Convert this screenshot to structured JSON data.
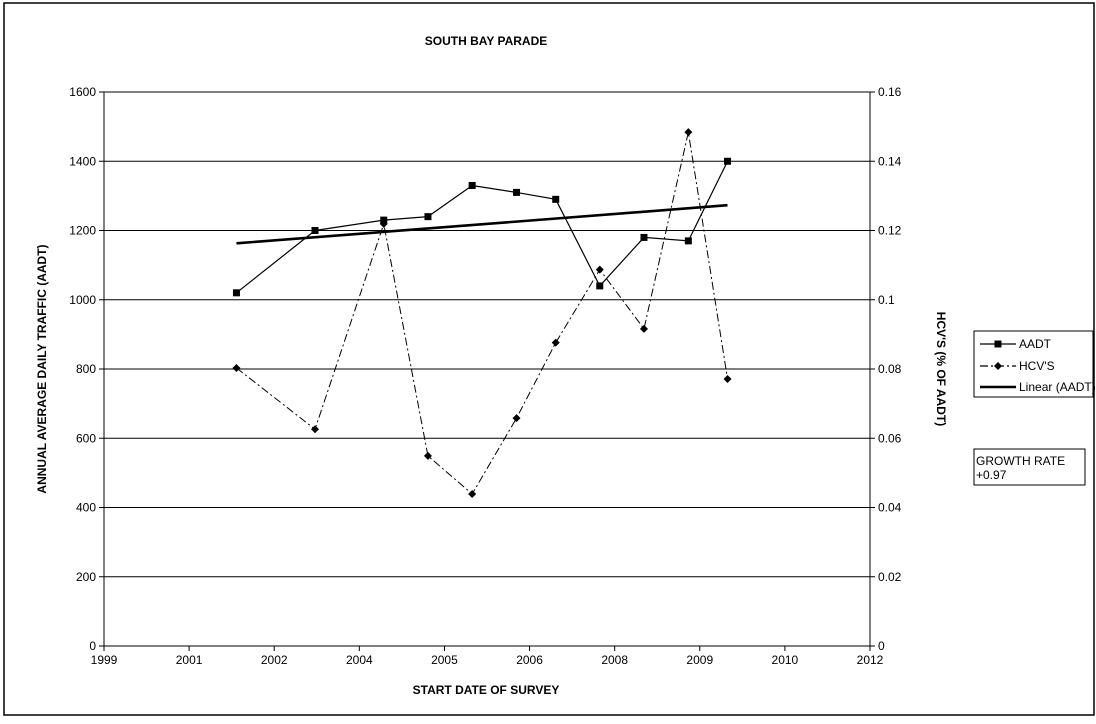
{
  "chart_data": {
    "type": "line",
    "title": "SOUTH BAY PARADE",
    "xlabel": "START DATE OF SURVEY",
    "ylabel_left": "ANNUAL AVERAGE DAILY TRAFFIC (AADT)",
    "ylabel_right": "HCV'S (% OF AADT)",
    "x_tick_labels": [
      "1999",
      "2001",
      "2002",
      "2004",
      "2005",
      "2006",
      "2008",
      "2009",
      "2010",
      "2012"
    ],
    "y_left_ticks": [
      "0",
      "200",
      "400",
      "600",
      "800",
      "1000",
      "1200",
      "1400",
      "1600"
    ],
    "y_right_ticks": [
      "0",
      "0.02",
      "0.04",
      "0.06",
      "0.08",
      "0.1",
      "0.12",
      "0.14",
      "0.16"
    ],
    "ylim_left": [
      0,
      1600
    ],
    "ylim_right": [
      0,
      0.16
    ],
    "grid": "horizontal",
    "legend_position": "right",
    "series": [
      {
        "name": "AADT",
        "axis": "left",
        "marker": "square",
        "line_style": "solid",
        "color": "#000000",
        "x": [
          "2001-04",
          "2002-08",
          "2003-10",
          "2004-07",
          "2005-04",
          "2006-01",
          "2006-09",
          "2007-06",
          "2008-03",
          "2008-12",
          "2009-08"
        ],
        "values": [
          1020,
          1200,
          1230,
          1240,
          1330,
          1310,
          1290,
          1040,
          1180,
          1170,
          1400
        ]
      },
      {
        "name": "HCV'S",
        "axis": "right",
        "marker": "diamond",
        "line_style": "dash-dot",
        "color": "#000000",
        "x": [
          "2001-04",
          "2002-08",
          "2003-10",
          "2004-07",
          "2005-04",
          "2006-01",
          "2006-09",
          "2007-06",
          "2008-03",
          "2008-12",
          "2009-08"
        ],
        "values": [
          0.0803,
          0.0626,
          0.1219,
          0.0549,
          0.0439,
          0.0658,
          0.0876,
          0.1087,
          0.0916,
          0.1484,
          0.0771
        ]
      },
      {
        "name": "Linear (AADT)",
        "axis": "left",
        "marker": "none",
        "line_style": "solid-thick",
        "color": "#000000",
        "x": [
          "2001-04",
          "2009-08"
        ],
        "values": [
          1163,
          1273
        ]
      }
    ],
    "annotation": {
      "line1": "GROWTH RATE",
      "line2": "+0.97"
    }
  }
}
